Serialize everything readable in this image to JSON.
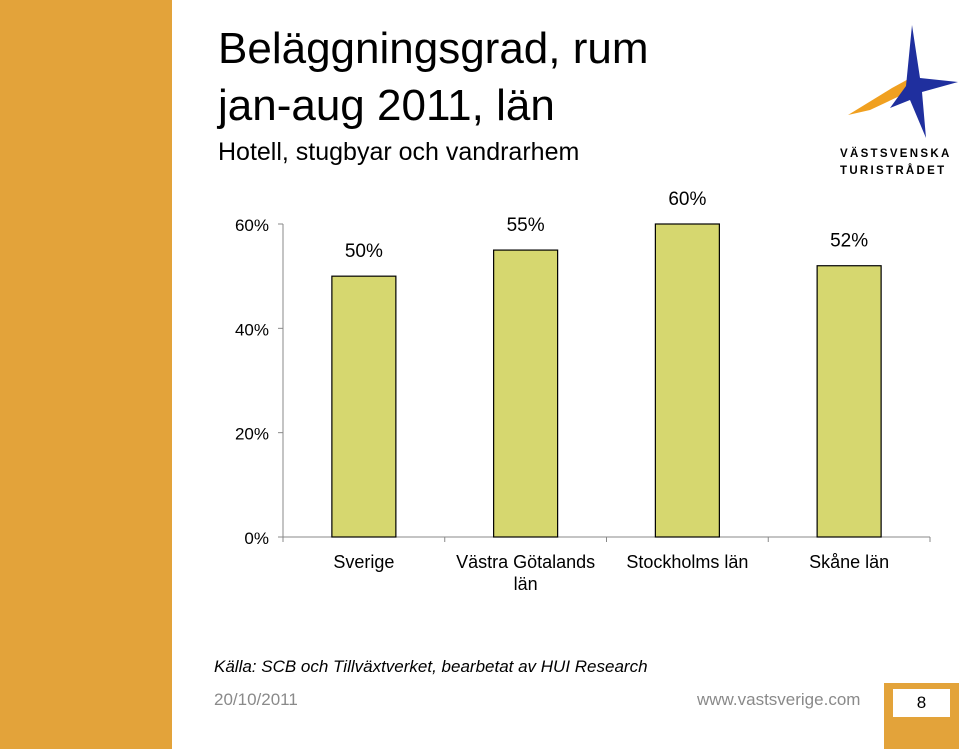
{
  "slide": {
    "title_line1": "Beläggningsgrad, rum",
    "title_line2": "jan-aug 2011, län",
    "subtitle": "Hotell, stugbyar och vandrarhem",
    "source": "Källa: SCB och Tillväxtverket, bearbetat av HUI Research",
    "date": "20/10/2011",
    "website": "www.vastsverige.com",
    "page_number": "8"
  },
  "logo": {
    "line1": "VÄSTSVENSKA",
    "line2": "TURISTRÅDET",
    "star_color": "#1f2f9e",
    "swoosh_color": "#f0a020"
  },
  "colors": {
    "sidebar": "#e3a33a",
    "bar_fill": "#d6d76f",
    "bar_stroke": "#000000"
  },
  "chart_data": {
    "type": "bar",
    "categories": [
      [
        "Sverige"
      ],
      [
        "Västra Götalands",
        "län"
      ],
      [
        "Stockholms län"
      ],
      [
        "Skåne län"
      ]
    ],
    "values": [
      50,
      55,
      60,
      52
    ],
    "data_labels": [
      "50%",
      "55%",
      "60%",
      "52%"
    ],
    "yticks": [
      0,
      20,
      40,
      60
    ],
    "ytick_labels": [
      "0%",
      "20%",
      "40%",
      "60%"
    ],
    "ylim": [
      0,
      60
    ],
    "grid": false,
    "legend": "none"
  }
}
